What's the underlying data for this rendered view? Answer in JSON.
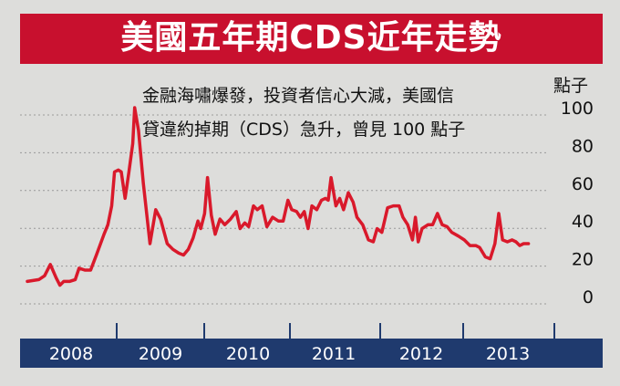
{
  "title": "美國五年期CDS近年走勢",
  "annotation": {
    "line1": "金融海嘯爆發，投資者信心大減，美國信",
    "line2": "貸違約掉期（CDS）急升，曾見 100 點子"
  },
  "colors": {
    "title_bg": "#c8102e",
    "line": "#d9192b",
    "axis_bar": "#1f3a6e",
    "background": "#dddddb"
  },
  "chart_data": {
    "type": "line",
    "title": "美國五年期CDS近年走勢",
    "ylabel": "點子",
    "xlabel": "",
    "ylim": [
      -5,
      105
    ],
    "xlim": [
      2008.0,
      2013.9
    ],
    "y_ticks": [
      0,
      20,
      40,
      60,
      80,
      100
    ],
    "x_ticks": [
      "2008",
      "2009",
      "2010",
      "2011",
      "2012",
      "2013"
    ],
    "grid": true,
    "series": [
      {
        "points": [
          [
            2008.0,
            8
          ],
          [
            2008.12,
            9
          ],
          [
            2008.18,
            11
          ],
          [
            2008.24,
            17
          ],
          [
            2008.3,
            10
          ],
          [
            2008.34,
            6
          ],
          [
            2008.38,
            8
          ],
          [
            2008.44,
            8
          ],
          [
            2008.5,
            9
          ],
          [
            2008.54,
            15
          ],
          [
            2008.6,
            14
          ],
          [
            2008.66,
            14
          ],
          [
            2008.72,
            22
          ],
          [
            2008.8,
            33
          ],
          [
            2008.84,
            38
          ],
          [
            2008.88,
            48
          ],
          [
            2008.91,
            66
          ],
          [
            2008.95,
            67
          ],
          [
            2008.98,
            66
          ],
          [
            2009.02,
            52
          ],
          [
            2009.06,
            66
          ],
          [
            2009.1,
            81
          ],
          [
            2009.12,
            100
          ],
          [
            2009.16,
            88
          ],
          [
            2009.21,
            60
          ],
          [
            2009.28,
            28
          ],
          [
            2009.34,
            46
          ],
          [
            2009.39,
            41
          ],
          [
            2009.46,
            28
          ],
          [
            2009.52,
            25
          ],
          [
            2009.58,
            23
          ],
          [
            2009.63,
            22
          ],
          [
            2009.68,
            25
          ],
          [
            2009.73,
            31
          ],
          [
            2009.78,
            40
          ],
          [
            2009.81,
            36
          ],
          [
            2009.85,
            44
          ],
          [
            2009.88,
            63
          ],
          [
            2009.92,
            43
          ],
          [
            2009.96,
            33
          ],
          [
            2010.01,
            41
          ],
          [
            2010.06,
            38
          ],
          [
            2010.12,
            41
          ],
          [
            2010.18,
            45
          ],
          [
            2010.22,
            36
          ],
          [
            2010.27,
            39
          ],
          [
            2010.31,
            37
          ],
          [
            2010.36,
            48
          ],
          [
            2010.4,
            46
          ],
          [
            2010.45,
            48
          ],
          [
            2010.5,
            37
          ],
          [
            2010.56,
            42
          ],
          [
            2010.62,
            40
          ],
          [
            2010.67,
            40
          ],
          [
            2010.72,
            51
          ],
          [
            2010.76,
            46
          ],
          [
            2010.81,
            45
          ],
          [
            2010.85,
            42
          ],
          [
            2010.89,
            45
          ],
          [
            2010.93,
            36
          ],
          [
            2010.97,
            48
          ],
          [
            2011.02,
            46
          ],
          [
            2011.07,
            51
          ],
          [
            2011.11,
            52
          ],
          [
            2011.14,
            51
          ],
          [
            2011.17,
            63
          ],
          [
            2011.22,
            48
          ],
          [
            2011.26,
            52
          ],
          [
            2011.3,
            46
          ],
          [
            2011.35,
            55
          ],
          [
            2011.4,
            50
          ],
          [
            2011.44,
            42
          ],
          [
            2011.5,
            38
          ],
          [
            2011.56,
            30
          ],
          [
            2011.61,
            29
          ],
          [
            2011.65,
            36
          ],
          [
            2011.7,
            34
          ],
          [
            2011.76,
            47
          ],
          [
            2011.82,
            48
          ],
          [
            2011.88,
            48
          ],
          [
            2011.92,
            42
          ],
          [
            2011.97,
            38
          ],
          [
            2012.02,
            30
          ],
          [
            2012.05,
            42
          ],
          [
            2012.08,
            29
          ],
          [
            2012.12,
            36
          ],
          [
            2012.18,
            38
          ],
          [
            2012.23,
            38
          ],
          [
            2012.28,
            44
          ],
          [
            2012.33,
            38
          ],
          [
            2012.38,
            37
          ],
          [
            2012.43,
            34
          ],
          [
            2012.5,
            32
          ],
          [
            2012.56,
            30
          ],
          [
            2012.62,
            27
          ],
          [
            2012.68,
            27
          ],
          [
            2012.72,
            26
          ],
          [
            2012.78,
            21
          ],
          [
            2012.83,
            20
          ],
          [
            2012.88,
            28
          ],
          [
            2012.92,
            44
          ],
          [
            2012.96,
            30
          ],
          [
            2013.01,
            29
          ],
          [
            2013.06,
            30
          ],
          [
            2013.1,
            29
          ],
          [
            2013.14,
            27
          ],
          [
            2013.18,
            28
          ],
          [
            2013.23,
            28
          ]
        ]
      }
    ]
  }
}
